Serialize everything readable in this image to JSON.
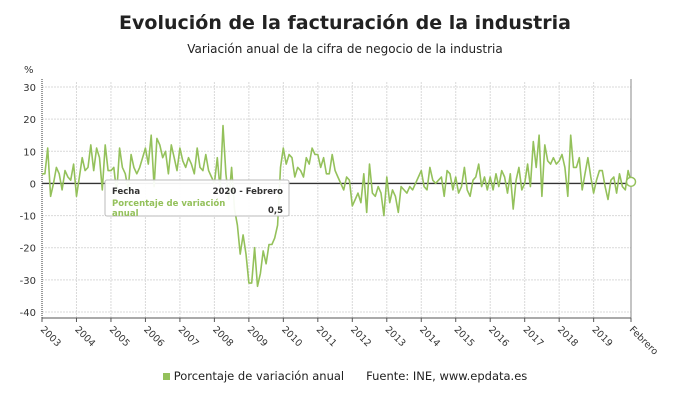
{
  "header": {
    "title": "Evolución de la facturación de la industria",
    "subtitle": "Variación anual de la cifra de negocio de la industria"
  },
  "legend": {
    "label": "Porcentaje de variación anual",
    "source": "Fuente: INE, www.epdata.es"
  },
  "tooltip": {
    "date_label": "Fecha",
    "date_value": "2020 - Febrero",
    "series_label_1": "Porcentaje de variación",
    "series_label_2": "anual",
    "value": "0,5"
  },
  "colors": {
    "line": "#94c15b",
    "grid": "#d9d9d9",
    "axis": "#333333"
  },
  "chart_data": {
    "type": "line",
    "title": "Evolución de la facturación de la industria",
    "subtitle": "Variación anual de la cifra de negocio de la industria",
    "ylabel": "%",
    "ylim": [
      -40,
      30
    ],
    "yticks": [
      30,
      20,
      10,
      0,
      -10,
      -20,
      -30,
      -40
    ],
    "xtick_labels": [
      "2003",
      "2004",
      "2005",
      "2006",
      "2007",
      "2008",
      "2009",
      "2010",
      "2011",
      "2012",
      "2013",
      "2014",
      "2015",
      "2016",
      "2017",
      "2018",
      "2019",
      "Febrero"
    ],
    "grid": true,
    "legend_position": "bottom",
    "series": [
      {
        "name": "Porcentaje de variación anual",
        "monthly_values_by_year": {
          "2003": [
            3,
            3,
            11,
            -4,
            0,
            5,
            3,
            -2,
            4,
            2,
            1,
            6
          ],
          "2004": [
            -4,
            2,
            8,
            4,
            5,
            12,
            4,
            11,
            8,
            -2,
            12,
            4
          ],
          "2005": [
            4,
            5,
            -3,
            11,
            5,
            3,
            -2,
            9,
            5,
            3,
            5,
            8
          ],
          "2006": [
            11,
            6,
            15,
            -1,
            14,
            12,
            8,
            10,
            3,
            12,
            8,
            4
          ],
          "2007": [
            11,
            7,
            5,
            8,
            6,
            3,
            11,
            5,
            4,
            9,
            4,
            2
          ],
          "2008": [
            0,
            8,
            -2,
            18,
            3,
            -5,
            5,
            -8,
            -13,
            -22,
            -16,
            -22
          ],
          "2009": [
            -31,
            -31,
            -20,
            -32,
            -28,
            -21,
            -25,
            -19,
            -19,
            -17,
            -13,
            5
          ],
          "2010": [
            11,
            6,
            9,
            8,
            2,
            5,
            4,
            2,
            8,
            6,
            11,
            9
          ],
          "2011": [
            9,
            5,
            8,
            3,
            3,
            9,
            4,
            2,
            0,
            -2,
            2,
            1
          ],
          "2012": [
            -7,
            -5,
            -3,
            -6,
            3,
            -9,
            6,
            -3,
            -4,
            -1,
            -3,
            -10
          ],
          "2013": [
            2,
            -6,
            -2,
            -4,
            -9,
            -1,
            -2,
            -3,
            -1,
            -2,
            0,
            2
          ],
          "2014": [
            4,
            -1,
            -2,
            5,
            1,
            0,
            1,
            2,
            -4,
            4,
            3,
            -2
          ],
          "2015": [
            2,
            -3,
            -1,
            5,
            -2,
            -4,
            1,
            2,
            6,
            -1,
            2,
            -2
          ],
          "2016": [
            2,
            -2,
            3,
            -1,
            4,
            2,
            -3,
            3,
            -8,
            1,
            5,
            -2
          ],
          "2017": [
            0,
            6,
            -1,
            13,
            5,
            15,
            -4,
            12,
            7,
            6,
            8,
            6
          ],
          "2018": [
            7,
            9,
            5,
            -4,
            15,
            5,
            5,
            8,
            -2,
            3,
            8,
            2
          ],
          "2019": [
            -3,
            1,
            4,
            4,
            -1,
            -5,
            1,
            2,
            -3,
            3,
            -1,
            -2
          ],
          "2020": [
            4,
            0.5
          ]
        }
      }
    ]
  }
}
